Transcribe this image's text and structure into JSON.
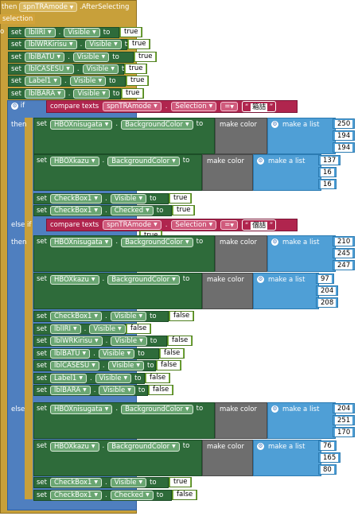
{
  "event": {
    "prefix": "then",
    "component": "spnTRAmode",
    "event_name": ".AfterSelecting",
    "param": "selection"
  },
  "kw": {
    "set": "set",
    "to": "to",
    "if": "if",
    "then": "then",
    "else_if": "else if",
    "else": "else",
    "compare": "compare texts",
    "make_color": "make color",
    "make_list": "make a list"
  },
  "prop": {
    "visible": "Visible",
    "selection": "Selection",
    "bgcolor": "BackgroundColor",
    "checked": "Checked"
  },
  "bool": {
    "t": "true",
    "f": "false"
  },
  "init_sets": [
    {
      "comp": "lblIRI",
      "val": "true"
    },
    {
      "comp": "lblWRKirisu",
      "val": "true"
    },
    {
      "comp": "lblBATU",
      "val": "true"
    },
    {
      "comp": "lblCASESU",
      "val": "true"
    },
    {
      "comp": "Label1",
      "val": "true"
    },
    {
      "comp": "lblBARA",
      "val": "true"
    }
  ],
  "compare1": {
    "comp": "spnTRAmode",
    "op": "=",
    "text": "箱詰"
  },
  "compare2": {
    "comp": "spnTRAmode",
    "op": "=",
    "text": "個詰"
  },
  "floating_true": "true",
  "branch1": {
    "hbox1": "HBOXnisugata",
    "color1": [
      "250",
      "194",
      "194"
    ],
    "hbox2": "HBOXkazu",
    "color2": [
      "137",
      "16",
      "16"
    ],
    "cb": "CheckBox1",
    "cb_visible": "true",
    "cb_checked": "true"
  },
  "branch2": {
    "hbox1": "HBOXnisugata",
    "color1": [
      "210",
      "245",
      "247"
    ],
    "hbox2": "HBOXkazu",
    "color2": [
      "97",
      "204",
      "208"
    ],
    "sets": [
      {
        "comp": "CheckBox1",
        "val": "false"
      },
      {
        "comp": "lblIRI",
        "val": "false"
      },
      {
        "comp": "lblWRKirisu",
        "val": "false"
      },
      {
        "comp": "lblBATU",
        "val": "false"
      },
      {
        "comp": "lblCASESU",
        "val": "false"
      },
      {
        "comp": "Label1",
        "val": "false"
      },
      {
        "comp": "lblBARA",
        "val": "false"
      }
    ]
  },
  "branch3": {
    "hbox1": "HBOXnisugata",
    "color1": [
      "204",
      "251",
      "170"
    ],
    "hbox2": "HBOXkazu",
    "color2": [
      "76",
      "165",
      "80"
    ],
    "cb": "CheckBox1",
    "cb_visible": "true",
    "cb_checked": "false"
  }
}
